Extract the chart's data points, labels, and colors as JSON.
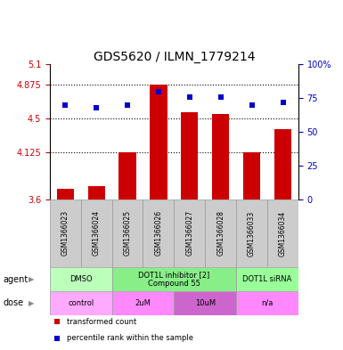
{
  "title": "GDS5620 / ILMN_1779214",
  "samples": [
    "GSM1366023",
    "GSM1366024",
    "GSM1366025",
    "GSM1366026",
    "GSM1366027",
    "GSM1366028",
    "GSM1366033",
    "GSM1366034"
  ],
  "bar_values": [
    3.72,
    3.74,
    4.125,
    4.88,
    4.57,
    4.55,
    4.125,
    4.38
  ],
  "dot_values": [
    70,
    68,
    70,
    80,
    76,
    76,
    70,
    72
  ],
  "ylim_left": [
    3.6,
    5.1
  ],
  "ylim_right": [
    0,
    100
  ],
  "yticks_left": [
    3.6,
    4.125,
    4.5,
    4.875,
    5.1
  ],
  "ytick_labels_left": [
    "3.6",
    "4.125",
    "4.5",
    "4.875",
    "5.1"
  ],
  "yticks_right": [
    0,
    25,
    50,
    75,
    100
  ],
  "ytick_labels_right": [
    "0",
    "25",
    "50",
    "75",
    "100%"
  ],
  "hlines": [
    4.125,
    4.5,
    4.875
  ],
  "bar_color": "#cc0000",
  "dot_color": "#0000cc",
  "bar_width": 0.55,
  "agent_groups": [
    {
      "label": "DMSO",
      "start": 0,
      "end": 2,
      "color": "#bbffbb"
    },
    {
      "label": "DOT1L inhibitor [2]\nCompound 55",
      "start": 2,
      "end": 6,
      "color": "#88ee88"
    },
    {
      "label": "DOT1L siRNA",
      "start": 6,
      "end": 8,
      "color": "#99ff99"
    }
  ],
  "dose_groups": [
    {
      "label": "control",
      "start": 0,
      "end": 2,
      "color": "#ffaaff"
    },
    {
      "label": "2uM",
      "start": 2,
      "end": 4,
      "color": "#ff88ff"
    },
    {
      "label": "10uM",
      "start": 4,
      "end": 6,
      "color": "#cc66cc"
    },
    {
      "label": "n/a",
      "start": 6,
      "end": 8,
      "color": "#ff88ff"
    }
  ],
  "legend_items": [
    {
      "label": "transformed count",
      "color": "#cc0000",
      "marker": "s"
    },
    {
      "label": "percentile rank within the sample",
      "color": "#0000cc",
      "marker": "s"
    }
  ],
  "xlabel_agent": "agent",
  "xlabel_dose": "dose",
  "background_color": "#ffffff",
  "grid_color": "#000000",
  "left_axis_color": "#cc0000",
  "right_axis_color": "#0000cc",
  "sample_box_color": "#cccccc",
  "title_fontsize": 10,
  "tick_fontsize": 7,
  "sample_fontsize": 5.5,
  "annot_fontsize": 6,
  "legend_fontsize": 6
}
